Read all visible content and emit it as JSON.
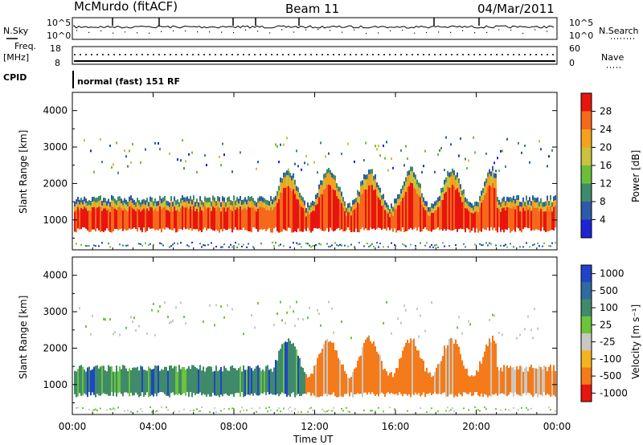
{
  "header": {
    "station": "McMurdo (fitACF)",
    "beam": "Beam 11",
    "date": "04/Mar/2011"
  },
  "left_labels": {
    "nsky": "N.Sky",
    "freq_line1": "Freq.",
    "freq_line2": "[MHz]",
    "cpid": "CPID"
  },
  "right_labels": {
    "nsearch": "N.Search",
    "nave": "Nave"
  },
  "mode_text": "normal (fast) 151 RF",
  "power_panel": {
    "ylabel": "Slant Range [km]",
    "colorbar_label": "Power [dB]",
    "colorbar_ticks": [
      "4",
      "8",
      "12",
      "16",
      "20",
      "24",
      "28"
    ],
    "colors": [
      "#1e24d6",
      "#2d5aa8",
      "#3f8a6a",
      "#6cbd3a",
      "#c9c23a",
      "#f4a21e",
      "#f46a1a",
      "#e8150f"
    ]
  },
  "velocity_panel": {
    "ylabel": "Slant Range [km]",
    "colorbar_label": "Velocity [m s⁻¹]",
    "colorbar_ticks": [
      "1000",
      "500",
      "100",
      "25",
      "-25",
      "-100",
      "-500",
      "-1000"
    ],
    "colors": [
      "#2044c8",
      "#2f6aa0",
      "#3f8a6a",
      "#6cc43a",
      "#c8c8c0",
      "#f4b41e",
      "#f47a1a",
      "#e8150f"
    ]
  },
  "xlabel": "Time UT",
  "chart_data": [
    {
      "type": "line",
      "name": "noise",
      "tick_labels_left": [
        "10^5",
        "10^0"
      ],
      "tick_labels_right": [
        "10^5",
        "10^0"
      ]
    },
    {
      "type": "line",
      "name": "frequency / nave",
      "ylim_left": [
        8,
        18
      ],
      "ylim_right": [
        0,
        60
      ],
      "tick_labels_left": [
        "18",
        "8"
      ],
      "tick_labels_right": [
        "60",
        "0"
      ]
    },
    {
      "type": "heatmap",
      "quantity": "power",
      "xlim": [
        0,
        24
      ],
      "ylim": [
        180,
        4500
      ],
      "x_ticks": [
        "00:00",
        "04:00",
        "08:00",
        "12:00",
        "16:00",
        "20:00",
        "00:00"
      ],
      "x_tick_values": [
        0,
        4,
        8,
        12,
        16,
        20,
        24
      ],
      "y_ticks": [
        1000,
        2000,
        3000,
        4000
      ],
      "ylabel": "Slant Range [km]",
      "colorbar_label": "Power [dB]"
    },
    {
      "type": "heatmap",
      "quantity": "velocity",
      "xlim": [
        0,
        24
      ],
      "ylim": [
        180,
        4500
      ],
      "x_ticks": [
        "00:00",
        "04:00",
        "08:00",
        "12:00",
        "16:00",
        "20:00",
        "00:00"
      ],
      "x_tick_values": [
        0,
        4,
        8,
        12,
        16,
        20,
        24
      ],
      "y_ticks": [
        1000,
        2000,
        3000,
        4000
      ],
      "ylabel": "Slant Range [km]",
      "colorbar_label": "Velocity [m s⁻¹]",
      "xlabel": "Time UT"
    }
  ]
}
